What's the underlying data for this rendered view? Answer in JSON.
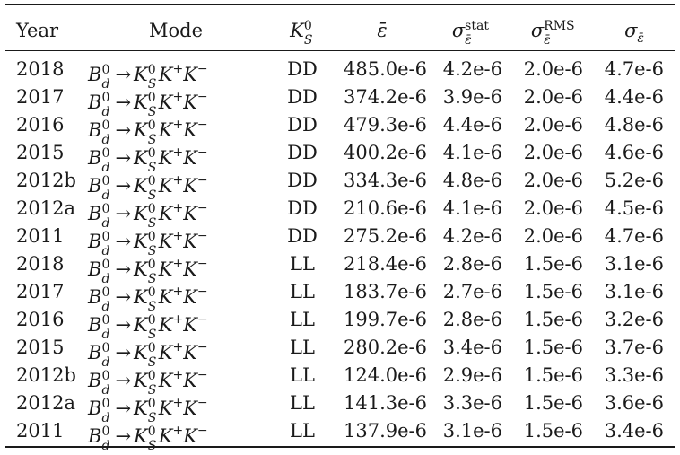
{
  "header": {
    "year": "Year",
    "mode": "Mode",
    "ks_main": "K",
    "ks_sup": "0",
    "ks_sub": "S",
    "eps": "ε̄",
    "sigma": "σ",
    "stat_sup": "stat",
    "rms_sup": "RMS",
    "eps_sub": "ε̄"
  },
  "mode": {
    "b": "B",
    "b_sup": "0",
    "b_sub": "d",
    "arrow": "→",
    "k": "K",
    "k_sup": "0",
    "k_sub": "S",
    "kp": "K",
    "kp_sup": "+",
    "km": "K",
    "km_sup": "−"
  },
  "rows": [
    {
      "year": "2018",
      "ks": "DD",
      "eps": "485.0e-6",
      "stat": "4.2e-6",
      "rms": "2.0e-6",
      "tot": "4.7e-6"
    },
    {
      "year": "2017",
      "ks": "DD",
      "eps": "374.2e-6",
      "stat": "3.9e-6",
      "rms": "2.0e-6",
      "tot": "4.4e-6"
    },
    {
      "year": "2016",
      "ks": "DD",
      "eps": "479.3e-6",
      "stat": "4.4e-6",
      "rms": "2.0e-6",
      "tot": "4.8e-6"
    },
    {
      "year": "2015",
      "ks": "DD",
      "eps": "400.2e-6",
      "stat": "4.1e-6",
      "rms": "2.0e-6",
      "tot": "4.6e-6"
    },
    {
      "year": "2012b",
      "ks": "DD",
      "eps": "334.3e-6",
      "stat": "4.8e-6",
      "rms": "2.0e-6",
      "tot": "5.2e-6"
    },
    {
      "year": "2012a",
      "ks": "DD",
      "eps": "210.6e-6",
      "stat": "4.1e-6",
      "rms": "2.0e-6",
      "tot": "4.5e-6"
    },
    {
      "year": "2011",
      "ks": "DD",
      "eps": "275.2e-6",
      "stat": "4.2e-6",
      "rms": "2.0e-6",
      "tot": "4.7e-6"
    },
    {
      "year": "2018",
      "ks": "LL",
      "eps": "218.4e-6",
      "stat": "2.8e-6",
      "rms": "1.5e-6",
      "tot": "3.1e-6"
    },
    {
      "year": "2017",
      "ks": "LL",
      "eps": "183.7e-6",
      "stat": "2.7e-6",
      "rms": "1.5e-6",
      "tot": "3.1e-6"
    },
    {
      "year": "2016",
      "ks": "LL",
      "eps": "199.7e-6",
      "stat": "2.8e-6",
      "rms": "1.5e-6",
      "tot": "3.2e-6"
    },
    {
      "year": "2015",
      "ks": "LL",
      "eps": "280.2e-6",
      "stat": "3.4e-6",
      "rms": "1.5e-6",
      "tot": "3.7e-6"
    },
    {
      "year": "2012b",
      "ks": "LL",
      "eps": "124.0e-6",
      "stat": "2.9e-6",
      "rms": "1.5e-6",
      "tot": "3.3e-6"
    },
    {
      "year": "2012a",
      "ks": "LL",
      "eps": "141.3e-6",
      "stat": "3.3e-6",
      "rms": "1.5e-6",
      "tot": "3.6e-6"
    },
    {
      "year": "2011",
      "ks": "LL",
      "eps": "137.9e-6",
      "stat": "3.1e-6",
      "rms": "1.5e-6",
      "tot": "3.4e-6"
    }
  ]
}
